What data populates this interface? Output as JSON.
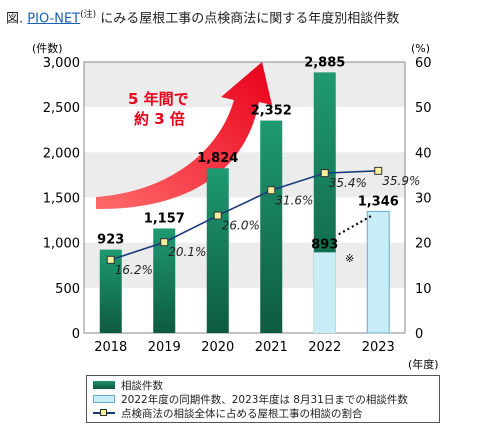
{
  "title": {
    "prefix": "図.",
    "link": "PIO-NET",
    "note": "(注)",
    "rest": "にみる屋根工事の点検商法に関する年度別相談件数"
  },
  "chart_data": {
    "type": "bar",
    "categories": [
      "2018",
      "2019",
      "2020",
      "2021",
      "2022",
      "2023"
    ],
    "series": [
      {
        "name": "相談件数",
        "values": [
          923,
          1157,
          1824,
          2352,
          2885,
          null
        ],
        "labels": [
          "923",
          "1,157",
          "1,824",
          "2,352",
          "2,885",
          ""
        ],
        "color": "#137a56"
      },
      {
        "name": "2022年度の同期件数、2023年度は 8月31日までの相談件数",
        "values": [
          null,
          null,
          null,
          null,
          893,
          1346
        ],
        "labels": [
          "",
          "",
          "",
          "",
          "893",
          "1,346"
        ],
        "color": "#c8edf7"
      },
      {
        "name": "点検商法の相談全体に占める屋根工事の相談の割合",
        "type": "line",
        "axis": "right",
        "values": [
          16.2,
          20.1,
          26.0,
          31.6,
          35.4,
          35.9
        ],
        "labels": [
          "16.2%",
          "20.1%",
          "26.0%",
          "31.6%",
          "35.4%",
          "35.9%"
        ],
        "color": "#1a3a7a"
      }
    ],
    "y_left": {
      "label": "(件数)",
      "ylim": [
        0,
        3000
      ],
      "ticks": [
        "0",
        "500",
        "1,000",
        "1,500",
        "2,000",
        "2,500",
        "3,000"
      ]
    },
    "y_right": {
      "label": "(%)",
      "ylim": [
        0,
        60
      ],
      "ticks": [
        "0",
        "10",
        "20",
        "30",
        "40",
        "50",
        "60"
      ]
    },
    "xlabel": "(年度)",
    "annotations": {
      "growth": [
        "5 年間で",
        "約 3 倍"
      ],
      "mark": "※"
    },
    "grid": "alternating bands",
    "legend_position": "bottom"
  }
}
